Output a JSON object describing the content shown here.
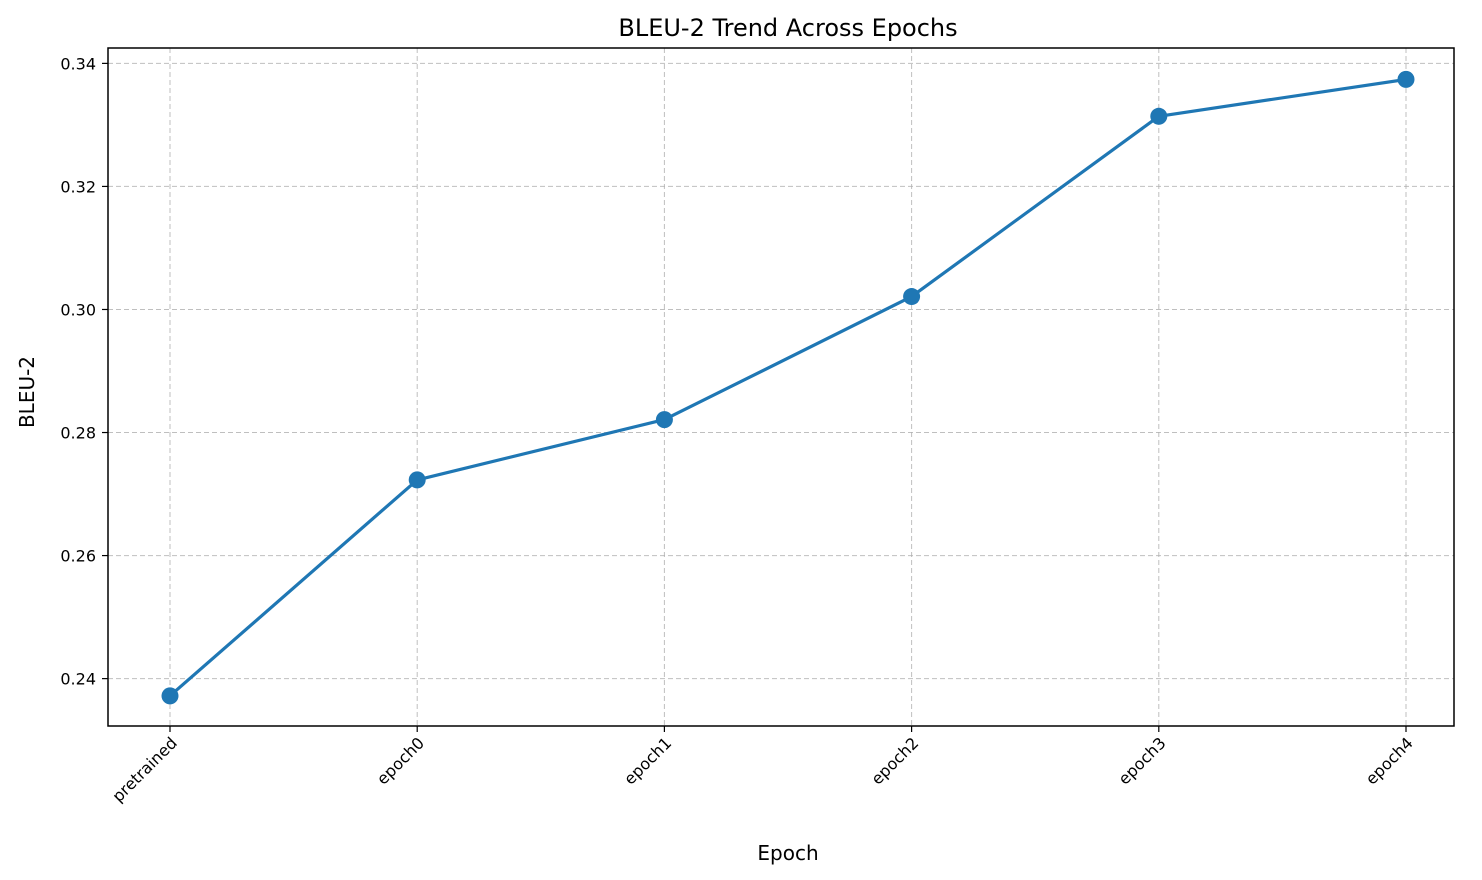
{
  "chart_data": {
    "type": "line",
    "title": "BLEU-2 Trend Across Epochs",
    "xlabel": "Epoch",
    "ylabel": "BLEU-2",
    "categories": [
      "pretrained",
      "epoch0",
      "epoch1",
      "epoch2",
      "epoch3",
      "epoch4"
    ],
    "series": [
      {
        "values": [
          0.2372,
          0.2723,
          0.2821,
          0.3021,
          0.3314,
          0.3374
        ]
      }
    ],
    "ylim": [
      0.2323,
      0.3425
    ],
    "yticks": [
      0.24,
      0.26,
      0.28,
      0.3,
      0.32,
      0.34
    ],
    "ytick_labels": [
      "0.24",
      "0.26",
      "0.28",
      "0.30",
      "0.32",
      "0.34"
    ],
    "grid": true,
    "marker": "circle",
    "line_color": "#1f77b4"
  }
}
